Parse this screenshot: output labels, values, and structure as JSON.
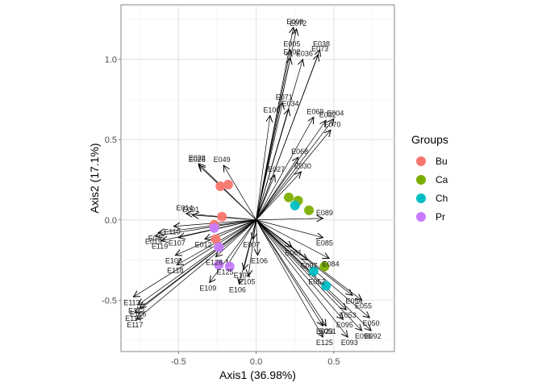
{
  "chart_data": {
    "type": "scatter",
    "subtype": "pca-biplot",
    "title": "",
    "xlabel": "Axis1 (36.98%)",
    "ylabel": "Axis2 (17.1%)",
    "xlim": [
      -0.87,
      0.89
    ],
    "ylim": [
      -0.82,
      1.34
    ],
    "xticks": [
      -0.5,
      0.0,
      0.5
    ],
    "xtick_labels": [
      "-0.5",
      "0.0",
      "0.5"
    ],
    "yticks": [
      -0.5,
      0.0,
      0.5,
      1.0
    ],
    "ytick_labels": [
      "-0.5",
      "0.0",
      "0.5",
      "1.0"
    ],
    "grid": true,
    "legend": {
      "title": "Groups",
      "position": "right",
      "entries": [
        {
          "name": "Bu",
          "color": "#F8766D"
        },
        {
          "name": "Ca",
          "color": "#7CAE00"
        },
        {
          "name": "Ch",
          "color": "#00BFC4"
        },
        {
          "name": "Pr",
          "color": "#C77CFF"
        }
      ]
    },
    "points": [
      {
        "group": "Bu",
        "x": -0.18,
        "y": 0.22
      },
      {
        "group": "Bu",
        "x": -0.23,
        "y": 0.21
      },
      {
        "group": "Bu",
        "x": -0.22,
        "y": 0.02
      },
      {
        "group": "Bu",
        "x": -0.27,
        "y": -0.03
      },
      {
        "group": "Bu",
        "x": -0.26,
        "y": -0.12
      },
      {
        "group": "Ca",
        "x": 0.21,
        "y": 0.14
      },
      {
        "group": "Ca",
        "x": 0.27,
        "y": 0.12
      },
      {
        "group": "Ca",
        "x": 0.34,
        "y": 0.06
      },
      {
        "group": "Ca",
        "x": 0.44,
        "y": -0.29
      },
      {
        "group": "Ch",
        "x": 0.25,
        "y": 0.09
      },
      {
        "group": "Ch",
        "x": 0.37,
        "y": -0.32
      },
      {
        "group": "Ch",
        "x": 0.45,
        "y": -0.41
      },
      {
        "group": "Pr",
        "x": -0.27,
        "y": -0.05
      },
      {
        "group": "Pr",
        "x": -0.24,
        "y": -0.17
      },
      {
        "group": "Pr",
        "x": -0.24,
        "y": -0.28
      },
      {
        "group": "Pr",
        "x": -0.17,
        "y": -0.29
      }
    ],
    "loadings": [
      {
        "label": "E008",
        "x": 0.24,
        "y": 1.2
      },
      {
        "label": "E072",
        "x": 0.26,
        "y": 1.19
      },
      {
        "label": "E005",
        "x": 0.22,
        "y": 1.06
      },
      {
        "label": "E038",
        "x": 0.41,
        "y": 1.06
      },
      {
        "label": "E073",
        "x": 0.4,
        "y": 1.03
      },
      {
        "label": "E102",
        "x": 0.22,
        "y": 1.01
      },
      {
        "label": "E036",
        "x": 0.3,
        "y": 1.0
      },
      {
        "label": "E071",
        "x": 0.17,
        "y": 0.73
      },
      {
        "label": "E034",
        "x": 0.21,
        "y": 0.69
      },
      {
        "label": "E100",
        "x": 0.09,
        "y": 0.65
      },
      {
        "label": "E069",
        "x": 0.37,
        "y": 0.64
      },
      {
        "label": "E004",
        "x": 0.5,
        "y": 0.63
      },
      {
        "label": "E032",
        "x": 0.45,
        "y": 0.62
      },
      {
        "label": "E070",
        "x": 0.48,
        "y": 0.56
      },
      {
        "label": "E068",
        "x": 0.27,
        "y": 0.39
      },
      {
        "label": "E030",
        "x": 0.29,
        "y": 0.3
      },
      {
        "label": "E027",
        "x": 0.12,
        "y": 0.28
      },
      {
        "label": "E026",
        "x": -0.37,
        "y": 0.34
      },
      {
        "label": "E028",
        "x": -0.37,
        "y": 0.35
      },
      {
        "label": "E049",
        "x": -0.21,
        "y": 0.34
      },
      {
        "label": "E014",
        "x": -0.45,
        "y": 0.04
      },
      {
        "label": "E091",
        "x": -0.41,
        "y": 0.03
      },
      {
        "label": "E110",
        "x": -0.53,
        "y": -0.04
      },
      {
        "label": "E045",
        "x": -0.63,
        "y": -0.08
      },
      {
        "label": "E019",
        "x": -0.65,
        "y": -0.1
      },
      {
        "label": "E119",
        "x": -0.61,
        "y": -0.13
      },
      {
        "label": "E107",
        "x": -0.5,
        "y": -0.11
      },
      {
        "label": "E012",
        "x": -0.33,
        "y": -0.12
      },
      {
        "label": "E108",
        "x": -0.52,
        "y": -0.22
      },
      {
        "label": "E118",
        "x": -0.51,
        "y": -0.28
      },
      {
        "label": "E128",
        "x": -0.26,
        "y": -0.23
      },
      {
        "label": "E109",
        "x": -0.3,
        "y": -0.39
      },
      {
        "label": "E125",
        "x": -0.19,
        "y": -0.29
      },
      {
        "label": "E104",
        "x": -0.08,
        "y": -0.31
      },
      {
        "label": "E105",
        "x": -0.05,
        "y": -0.35
      },
      {
        "label": "E106",
        "x": -0.11,
        "y": -0.4
      },
      {
        "label": "E113",
        "x": -0.79,
        "y": -0.48
      },
      {
        "label": "E112",
        "x": -0.76,
        "y": -0.53
      },
      {
        "label": "E116",
        "x": -0.75,
        "y": -0.55
      },
      {
        "label": "E114",
        "x": -0.78,
        "y": -0.58
      },
      {
        "label": "E117",
        "x": -0.77,
        "y": -0.62
      },
      {
        "label": "E089",
        "x": 0.43,
        "y": 0.01
      },
      {
        "label": "E085",
        "x": 0.43,
        "y": -0.11
      },
      {
        "label": "E061",
        "x": 0.23,
        "y": -0.17
      },
      {
        "label": "E084",
        "x": 0.47,
        "y": -0.24
      },
      {
        "label": "E097",
        "x": 0.33,
        "y": -0.25
      },
      {
        "label": "E052",
        "x": 0.38,
        "y": -0.35
      },
      {
        "label": "E054",
        "x": 0.62,
        "y": -0.47
      },
      {
        "label": "E055",
        "x": 0.68,
        "y": -0.5
      },
      {
        "label": "E053",
        "x": 0.58,
        "y": -0.56
      },
      {
        "label": "E095",
        "x": 0.56,
        "y": -0.62
      },
      {
        "label": "E050",
        "x": 0.73,
        "y": -0.61
      },
      {
        "label": "E092",
        "x": 0.74,
        "y": -0.69
      },
      {
        "label": "E096",
        "x": 0.68,
        "y": -0.69
      },
      {
        "label": "E093",
        "x": 0.59,
        "y": -0.73
      },
      {
        "label": "E023",
        "x": 0.43,
        "y": -0.66
      },
      {
        "label": "E051",
        "x": 0.45,
        "y": -0.66
      },
      {
        "label": "E125",
        "x": 0.43,
        "y": -0.73
      },
      {
        "label": "E007",
        "x": -0.02,
        "y": -0.12
      },
      {
        "label": "E106",
        "x": 0.01,
        "y": -0.22
      }
    ]
  }
}
